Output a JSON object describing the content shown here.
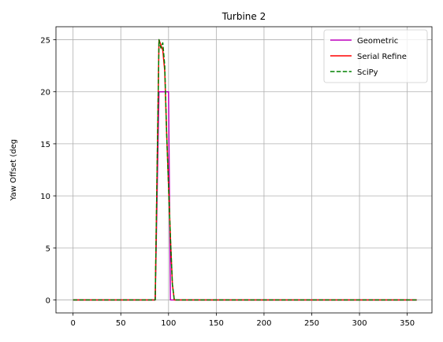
{
  "chart_data": {
    "type": "line",
    "title": "Turbine 2",
    "xlabel": "",
    "ylabel": "Yaw Offset (deg",
    "xlim": [
      -17.9,
      375.9
    ],
    "ylim": [
      -1.25,
      26.25
    ],
    "xticks": [
      0,
      50,
      100,
      150,
      200,
      250,
      300,
      350
    ],
    "yticks": [
      0,
      5,
      10,
      15,
      20,
      25
    ],
    "grid": true,
    "legend_position": "top-right",
    "series": [
      {
        "name": "Geometric",
        "color": "#bf00bf",
        "style": "solid",
        "x": [
          0,
          86,
          88,
          90,
          92,
          94,
          96,
          98,
          100,
          102,
          104,
          360
        ],
        "y": [
          0,
          0,
          10,
          20,
          20,
          20,
          20,
          20,
          20,
          0,
          0,
          0
        ]
      },
      {
        "name": "Serial Refine",
        "color": "#ff0000",
        "style": "solid",
        "x": [
          0,
          86,
          88,
          90,
          92,
          94,
          96,
          98,
          100,
          102,
          104,
          106,
          360
        ],
        "y": [
          0,
          0,
          12.5,
          25,
          24.5,
          24,
          22,
          16,
          11,
          6,
          1.5,
          0,
          0
        ]
      },
      {
        "name": "SciPy",
        "color": "#008000",
        "style": "dashed",
        "x": [
          0,
          86,
          88,
          90,
          92,
          94,
          96,
          98,
          100,
          102,
          104,
          106,
          360
        ],
        "y": [
          0,
          0,
          12.5,
          25,
          24.2,
          24.7,
          22.5,
          16,
          11,
          6,
          1.5,
          0,
          0
        ]
      }
    ]
  }
}
